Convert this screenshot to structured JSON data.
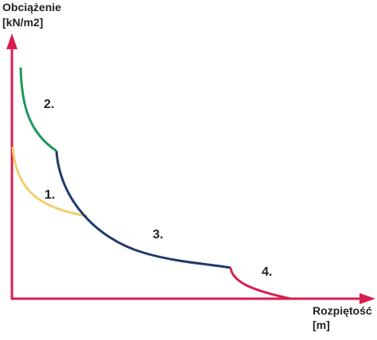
{
  "axes": {
    "y": {
      "label": "Obciążenie",
      "unit": "[kN/m2]"
    },
    "x": {
      "label": "Rozpiętość",
      "unit": "[m]"
    }
  },
  "curves": [
    {
      "label": "1."
    },
    {
      "label": "2."
    },
    {
      "label": "3."
    },
    {
      "label": "4."
    }
  ]
}
